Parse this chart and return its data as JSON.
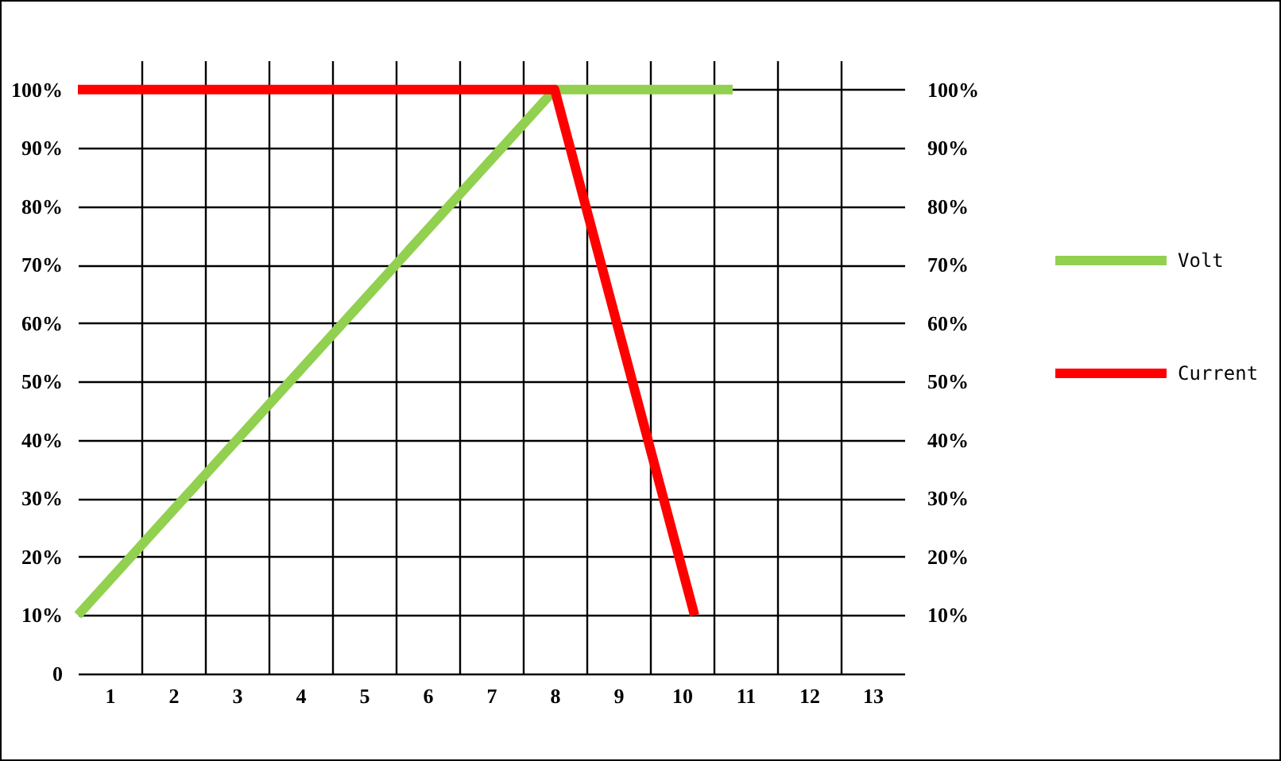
{
  "chart_data": {
    "type": "line",
    "xlim": [
      0.5,
      13.5
    ],
    "xticks": [
      1,
      {
        "value": 1.5,
        "label": null
      },
      2,
      {
        "value": 2.5,
        "label": null
      },
      3,
      {
        "value": 3.5,
        "label": null
      },
      4,
      {
        "value": 4.5,
        "label": null
      },
      5,
      {
        "value": 5.5,
        "label": null
      },
      6,
      {
        "value": 6.5,
        "label": null
      },
      7,
      {
        "value": 7.5,
        "label": null
      },
      8,
      {
        "value": 8.5,
        "label": null
      },
      9,
      {
        "value": 9.5,
        "label": null
      },
      10,
      {
        "value": 10.5,
        "label": null
      },
      11,
      {
        "value": 11.5,
        "label": null
      },
      12,
      {
        "value": 12.5,
        "label": null
      },
      13
    ],
    "ylim": [
      0,
      105
    ],
    "yticks": [
      0,
      {
        "value": 10,
        "label": "10%"
      },
      {
        "value": 20,
        "label": "20%"
      },
      {
        "value": 30,
        "label": "30%"
      },
      {
        "value": 40,
        "label": "40%"
      },
      {
        "value": 50,
        "label": "50%"
      },
      {
        "value": 60,
        "label": "60%"
      },
      {
        "value": 70,
        "label": "70%"
      },
      {
        "value": 80,
        "label": "80%"
      },
      {
        "value": 90,
        "label": "90%"
      },
      {
        "value": 100,
        "label": "100%"
      }
    ],
    "y2lim": [
      0,
      105
    ],
    "y2ticks": [
      {
        "value": 10,
        "label": "10%"
      },
      {
        "value": 20,
        "label": "20%"
      },
      {
        "value": 30,
        "label": "30%"
      },
      {
        "value": 40,
        "label": "40%"
      },
      {
        "value": 50,
        "label": "50%"
      },
      {
        "value": 60,
        "label": "60%"
      },
      {
        "value": 70,
        "label": "70%"
      },
      {
        "value": 80,
        "label": "80%"
      },
      {
        "value": 90,
        "label": "90%"
      },
      {
        "value": 100,
        "label": "100%"
      }
    ],
    "series": [
      {
        "name": "Volt",
        "color": "#92d050",
        "x": [
          0.5,
          8,
          10.8
        ],
        "values": [
          10,
          100,
          100
        ]
      },
      {
        "name": "Current",
        "color": "#ff0000",
        "x": [
          0.5,
          8,
          10.2
        ],
        "values": [
          100,
          100,
          10
        ]
      }
    ],
    "grid": true,
    "legend": "right",
    "marker": "none",
    "line_style": "solid"
  }
}
